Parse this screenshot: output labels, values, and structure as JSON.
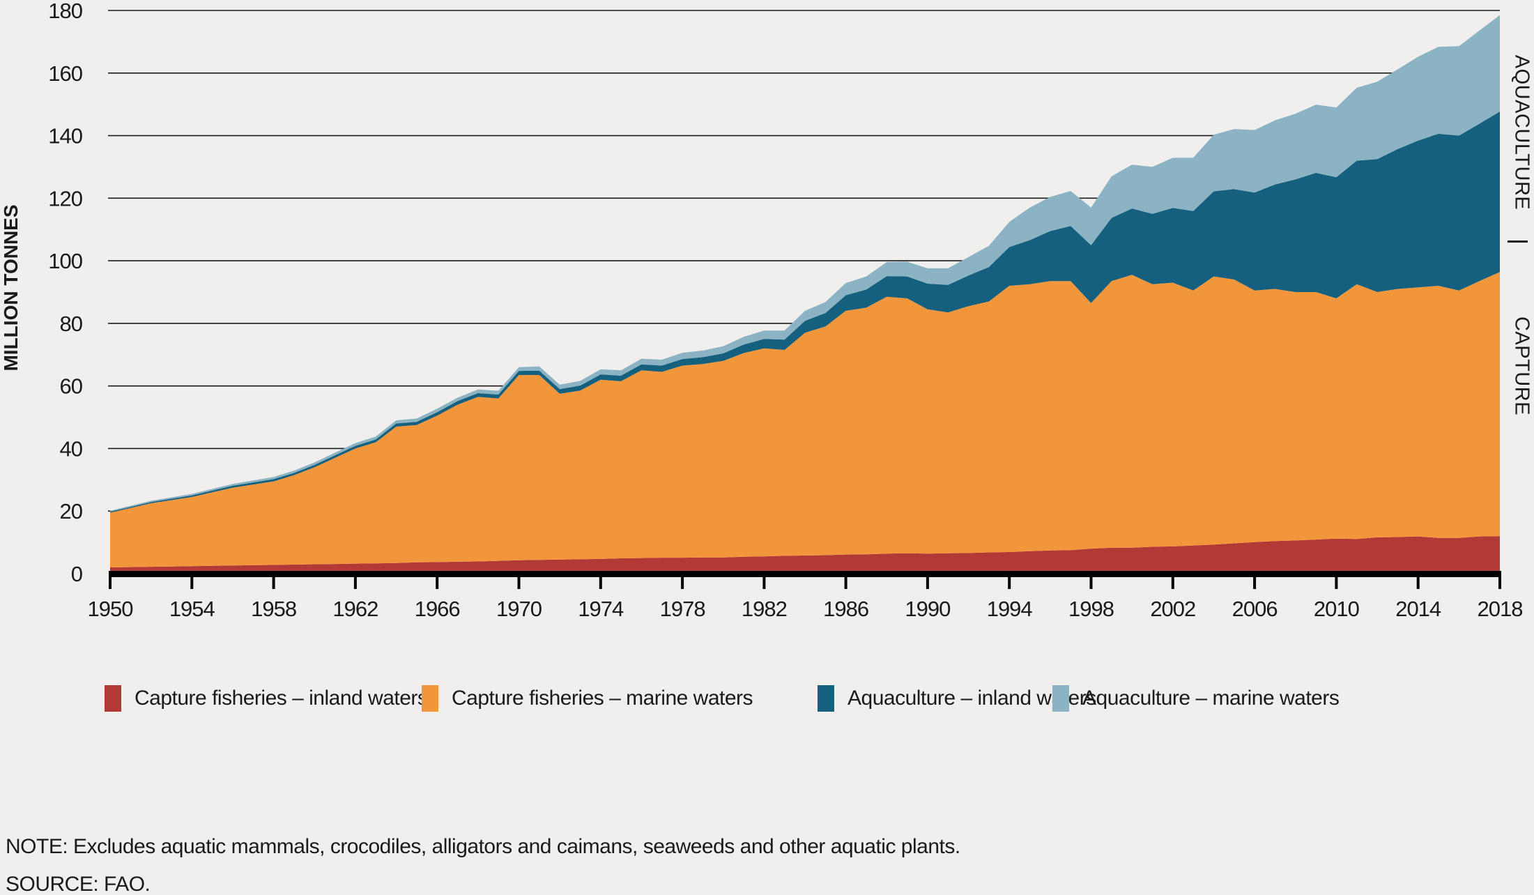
{
  "figure": {
    "background": "#F0EFED",
    "text_color": "#1A1A1A",
    "grid_color": "#1A1A1A",
    "axis_color": "#000000"
  },
  "y_axis": {
    "title": "MILLION TONNES",
    "tick_values": [
      0,
      20,
      40,
      60,
      80,
      100,
      120,
      140,
      160,
      180
    ]
  },
  "x_axis": {
    "tick_values": [
      1950,
      1954,
      1958,
      1962,
      1966,
      1970,
      1974,
      1978,
      1982,
      1986,
      1990,
      1994,
      1998,
      2002,
      2006,
      2010,
      2014,
      2018
    ]
  },
  "right_labels": {
    "aquaculture": "AQUACULTURE",
    "capture": "CAPTURE"
  },
  "legend": [
    {
      "label": "Capture fisheries – inland waters",
      "color": "#B23936"
    },
    {
      "label": "Capture fisheries – marine waters",
      "color": "#F2963C"
    },
    {
      "label": "Aquaculture – inland waters",
      "color": "#15607F"
    },
    {
      "label": "Aquaculture – marine waters",
      "color": "#8BB3C4"
    }
  ],
  "notes": {
    "note": "NOTE: Excludes aquatic mammals, crocodiles, alligators and caimans, seaweeds and other aquatic plants.",
    "source": "SOURCE: FAO."
  },
  "chart_data": {
    "type": "area",
    "stacked": true,
    "title": "",
    "xlabel": "",
    "ylabel": "MILLION TONNES",
    "ylim": [
      0,
      180
    ],
    "xlim": [
      1950,
      2018
    ],
    "grid": true,
    "legend_position": "bottom",
    "x": [
      1950,
      1951,
      1952,
      1953,
      1954,
      1955,
      1956,
      1957,
      1958,
      1959,
      1960,
      1961,
      1962,
      1963,
      1964,
      1965,
      1966,
      1967,
      1968,
      1969,
      1970,
      1971,
      1972,
      1973,
      1974,
      1975,
      1976,
      1977,
      1978,
      1979,
      1980,
      1981,
      1982,
      1983,
      1984,
      1985,
      1986,
      1987,
      1988,
      1989,
      1990,
      1991,
      1992,
      1993,
      1994,
      1995,
      1996,
      1997,
      1998,
      1999,
      2000,
      2001,
      2002,
      2003,
      2004,
      2005,
      2006,
      2007,
      2008,
      2009,
      2010,
      2011,
      2012,
      2013,
      2014,
      2015,
      2016,
      2017,
      2018
    ],
    "series": [
      {
        "name": "Capture fisheries – inland waters",
        "color": "#B23936",
        "values": [
          2.0,
          2.1,
          2.2,
          2.3,
          2.4,
          2.5,
          2.6,
          2.7,
          2.8,
          2.9,
          3.0,
          3.1,
          3.2,
          3.3,
          3.4,
          3.6,
          3.7,
          3.8,
          3.9,
          4.1,
          4.3,
          4.4,
          4.5,
          4.6,
          4.7,
          4.9,
          5.0,
          5.1,
          5.1,
          5.2,
          5.2,
          5.4,
          5.5,
          5.7,
          5.8,
          5.9,
          6.1,
          6.2,
          6.4,
          6.5,
          6.4,
          6.5,
          6.6,
          6.8,
          6.9,
          7.2,
          7.4,
          7.5,
          8.0,
          8.3,
          8.3,
          8.6,
          8.7,
          9.0,
          9.3,
          9.7,
          10.1,
          10.4,
          10.6,
          10.9,
          11.2,
          11.1,
          11.6,
          11.7,
          11.9,
          11.4,
          11.4,
          11.9,
          12.0
        ]
      },
      {
        "name": "Capture fisheries – marine waters",
        "color": "#F2963C",
        "values": [
          17.5,
          18.9,
          20.3,
          21.2,
          22.1,
          23.5,
          24.9,
          25.8,
          26.7,
          28.6,
          31.0,
          33.9,
          36.8,
          38.7,
          43.6,
          43.9,
          46.8,
          50.2,
          52.6,
          51.9,
          59.2,
          59.1,
          53.0,
          53.9,
          57.3,
          56.6,
          60.0,
          59.4,
          61.4,
          61.8,
          62.8,
          65.1,
          66.5,
          65.8,
          71.2,
          73.1,
          77.9,
          78.8,
          82.1,
          81.5,
          78.1,
          77.0,
          78.9,
          80.2,
          85.1,
          85.3,
          86.1,
          86.0,
          78.5,
          85.2,
          87.2,
          83.9,
          84.3,
          81.5,
          85.7,
          84.3,
          80.4,
          80.6,
          79.4,
          79.1,
          76.8,
          81.4,
          78.4,
          79.3,
          79.6,
          80.6,
          79.1,
          81.6,
          84.4
        ]
      },
      {
        "name": "Aquaculture – inland waters",
        "color": "#15607F",
        "values": [
          0.3,
          0.35,
          0.4,
          0.45,
          0.5,
          0.55,
          0.6,
          0.65,
          0.7,
          0.7,
          0.75,
          0.8,
          0.85,
          0.9,
          1.0,
          1.05,
          1.1,
          1.15,
          1.2,
          1.25,
          1.3,
          1.4,
          1.5,
          1.6,
          1.7,
          1.8,
          1.9,
          2.0,
          2.1,
          2.2,
          2.4,
          2.7,
          3.0,
          3.3,
          3.8,
          4.3,
          5.0,
          5.8,
          6.6,
          7.0,
          8.2,
          8.8,
          9.8,
          11.0,
          12.4,
          14.1,
          16.0,
          17.6,
          18.5,
          20.2,
          21.2,
          22.5,
          23.9,
          25.4,
          27.2,
          28.9,
          31.3,
          33.4,
          36.0,
          38.1,
          38.7,
          39.5,
          42.5,
          44.7,
          46.9,
          48.6,
          49.5,
          50.3,
          51.3
        ]
      },
      {
        "name": "Aquaculture – marine waters",
        "color": "#8BB3C4",
        "values": [
          0.3,
          0.35,
          0.4,
          0.45,
          0.5,
          0.55,
          0.6,
          0.65,
          0.7,
          0.75,
          0.8,
          0.85,
          0.9,
          0.95,
          1.0,
          1.05,
          1.1,
          1.1,
          1.15,
          1.2,
          1.2,
          1.3,
          1.4,
          1.5,
          1.6,
          1.7,
          1.8,
          1.9,
          2.0,
          2.1,
          2.3,
          2.5,
          2.7,
          2.9,
          3.2,
          3.5,
          3.9,
          4.2,
          4.5,
          4.7,
          4.9,
          5.3,
          5.9,
          6.8,
          8.0,
          10.4,
          10.9,
          11.2,
          12.0,
          13.3,
          14.0,
          15.0,
          16.0,
          17.0,
          18.1,
          19.2,
          20.0,
          20.5,
          21.0,
          21.8,
          22.3,
          23.3,
          24.7,
          25.5,
          26.8,
          27.8,
          28.6,
          29.8,
          30.8
        ]
      }
    ]
  }
}
